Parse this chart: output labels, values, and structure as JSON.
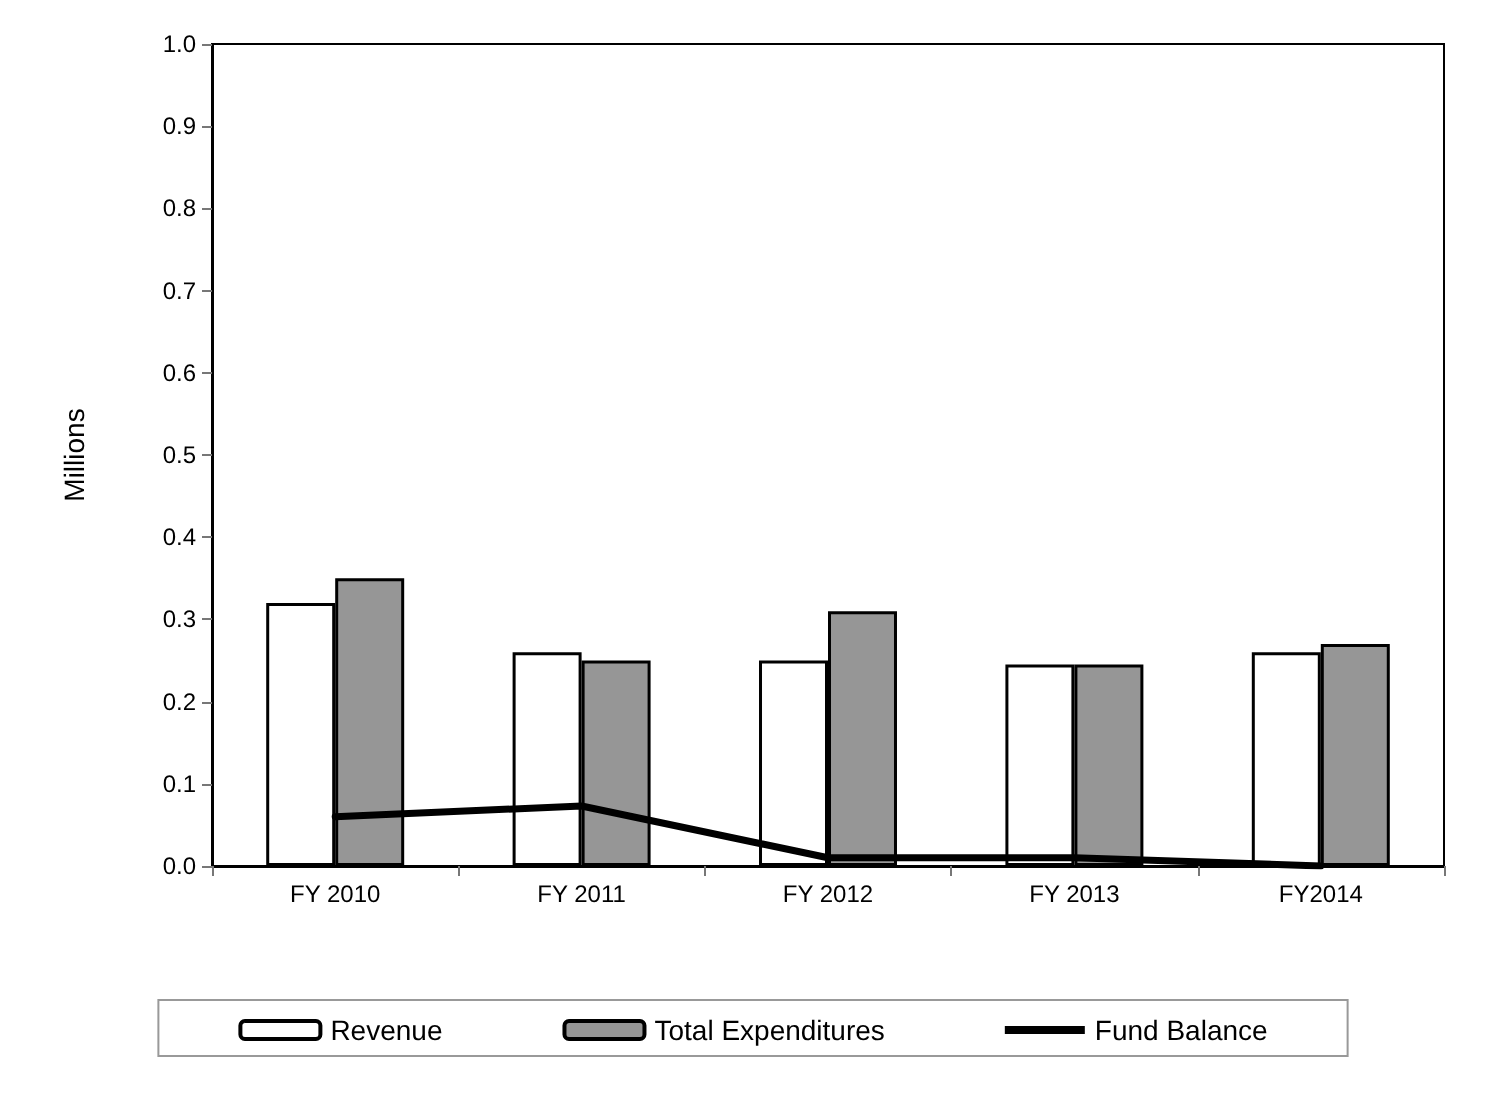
{
  "chart_data": {
    "type": "bar",
    "ylabel": "Millions",
    "categories": [
      "FY 2010",
      "FY 2011",
      "FY 2012",
      "FY 2013",
      "FY2014"
    ],
    "series": [
      {
        "name": "Revenue",
        "color": "#ffffff",
        "values": [
          0.32,
          0.26,
          0.25,
          0.245,
          0.26
        ]
      },
      {
        "name": "Total Expenditures",
        "color": "#969696",
        "values": [
          0.35,
          0.25,
          0.31,
          0.245,
          0.27
        ]
      },
      {
        "name": "Fund Balance",
        "type": "line",
        "color": "#000000",
        "values": [
          0.06,
          0.073,
          0.01,
          0.01,
          0.0
        ]
      }
    ],
    "ylim": [
      0,
      1
    ],
    "yticks": [
      {
        "value": 0,
        "label": "0.0"
      },
      {
        "value": 0.1,
        "label": "0.1"
      },
      {
        "value": 0.2,
        "label": "0.2"
      },
      {
        "value": 0.3,
        "label": "0.3"
      },
      {
        "value": 0.4,
        "label": "0.4"
      },
      {
        "value": 0.5,
        "label": "0.5"
      },
      {
        "value": 0.6,
        "label": "0.6"
      },
      {
        "value": 0.7,
        "label": "0.7"
      },
      {
        "value": 0.8,
        "label": "0.8"
      },
      {
        "value": 0.9,
        "label": "0.9"
      },
      {
        "value": 1,
        "label": "1.0"
      }
    ],
    "grid": false,
    "legend": "bottom",
    "marker": "none",
    "line_style": "solid"
  }
}
